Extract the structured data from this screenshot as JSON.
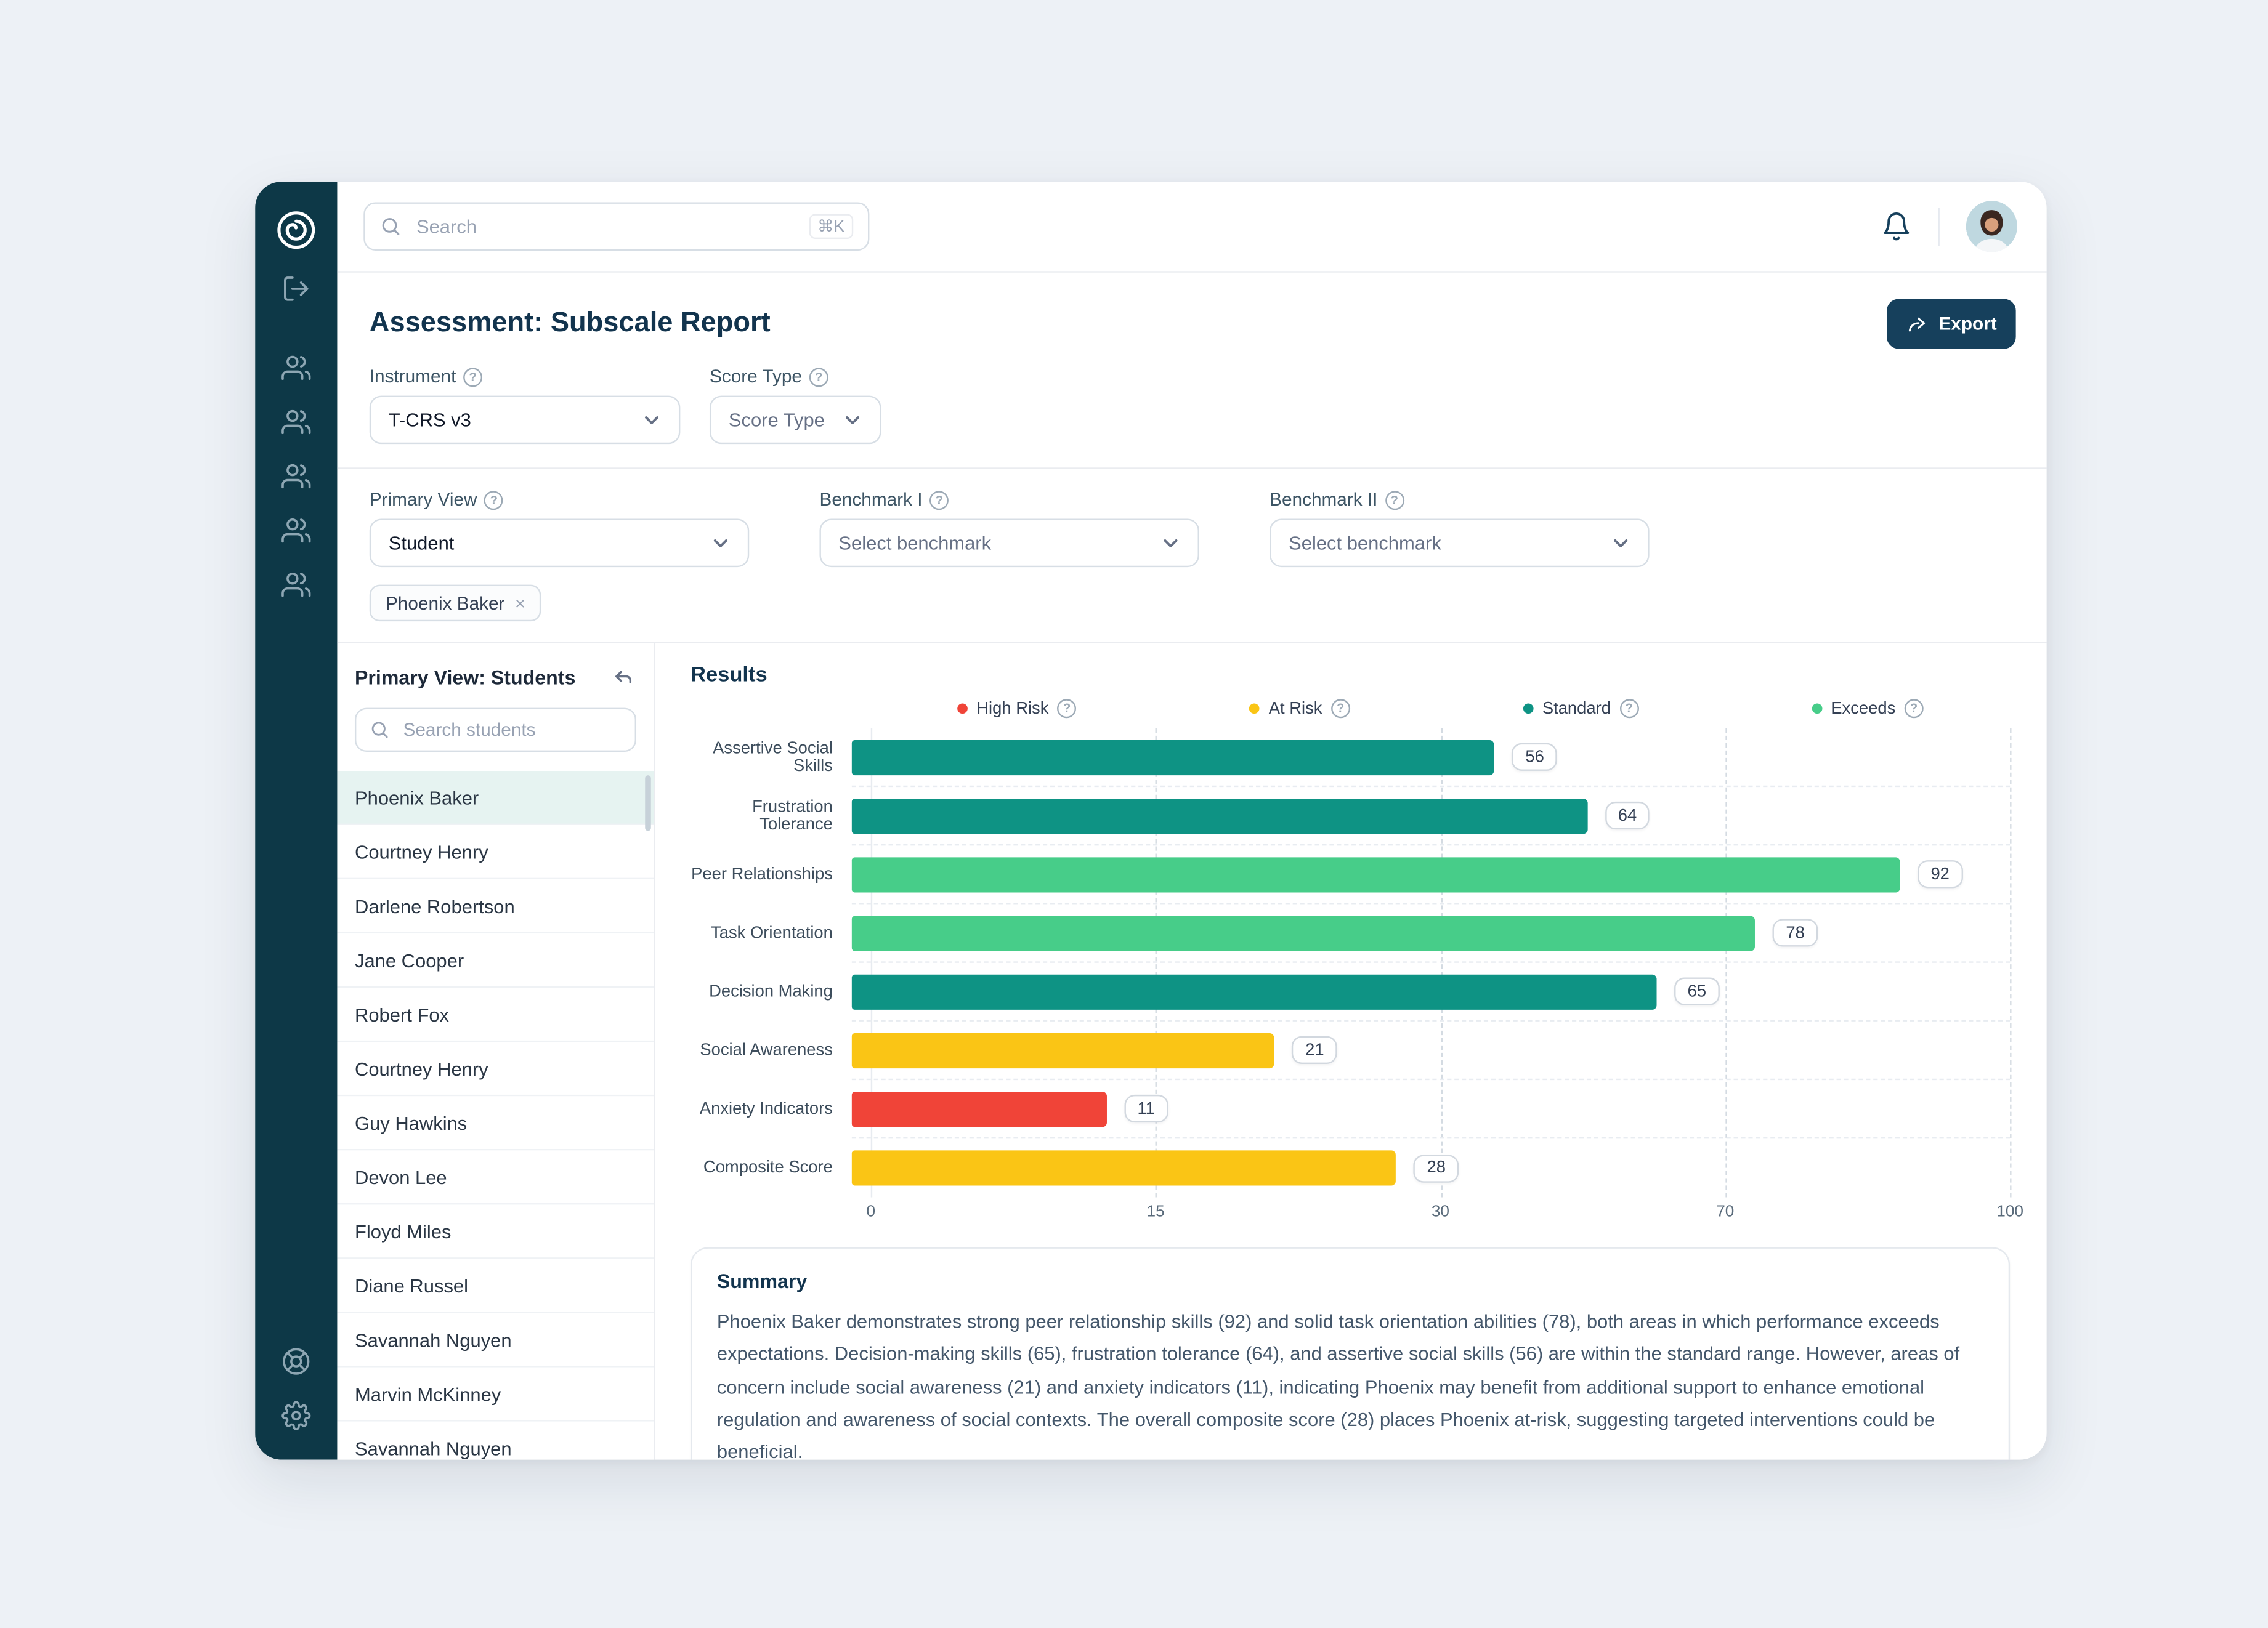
{
  "topbar": {
    "search_placeholder": "Search",
    "shortcut": "⌘K"
  },
  "header": {
    "title": "Assessment: Subscale Report",
    "export_label": "Export"
  },
  "filters": {
    "instrument_label": "Instrument",
    "instrument_value": "T-CRS v3",
    "score_type_label": "Score Type",
    "score_type_placeholder": "Score Type",
    "primary_view_label": "Primary View",
    "primary_view_value": "Student",
    "benchmark1_label": "Benchmark I",
    "benchmark1_placeholder": "Select benchmark",
    "benchmark2_label": "Benchmark II",
    "benchmark2_placeholder": "Select benchmark",
    "selected_chip": "Phoenix Baker"
  },
  "students_panel": {
    "title": "Primary View: Students",
    "search_placeholder": "Search students",
    "selected_index": 0,
    "students": [
      "Phoenix Baker",
      "Courtney Henry",
      "Darlene Robertson",
      "Jane Cooper",
      "Robert Fox",
      "Courtney Henry",
      "Guy Hawkins",
      "Devon Lee",
      "Floyd Miles",
      "Diane Russel",
      "Savannah Nguyen",
      "Marvin McKinney",
      "Savannah Nguyen"
    ]
  },
  "results": {
    "title": "Results"
  },
  "chart_data": {
    "type": "bar",
    "orientation": "horizontal",
    "title": "Results",
    "xlabel": "",
    "ylabel": "",
    "xlim": [
      0,
      100
    ],
    "x_ticks": [
      0,
      15,
      30,
      70,
      100
    ],
    "tick_positions_percent": [
      0,
      25,
      50,
      75,
      100
    ],
    "grid": "dashed-vertical",
    "legend_position": "top",
    "bands": [
      {
        "label": "High Risk",
        "color": "#F04438",
        "range": [
          0,
          15
        ]
      },
      {
        "label": "At Risk",
        "color": "#FAC515",
        "range": [
          15,
          30
        ]
      },
      {
        "label": "Standard",
        "color": "#0E9384",
        "range": [
          30,
          70
        ]
      },
      {
        "label": "Exceeds",
        "color": "#47CD89",
        "range": [
          70,
          100
        ]
      }
    ],
    "categories": [
      "Assertive Social Skills",
      "Frustration Tolerance",
      "Peer Relationships",
      "Task Orientation",
      "Decision Making",
      "Social Awareness",
      "Anxiety Indicators",
      "Composite Score"
    ],
    "values": [
      56,
      64,
      92,
      78,
      65,
      21,
      11,
      28
    ],
    "bar_colors": [
      "#0E9384",
      "#0E9384",
      "#47CD89",
      "#47CD89",
      "#0E9384",
      "#FAC515",
      "#F04438",
      "#FAC515"
    ],
    "bar_widths_percent": [
      55.5,
      63.5,
      90.5,
      78,
      69.5,
      36.5,
      22,
      47
    ]
  },
  "summary": {
    "title": "Summary",
    "text": "Phoenix Baker demonstrates strong peer relationship skills (92) and solid task orientation abilities (78), both areas in which performance exceeds expectations. Decision-making skills (65), frustration tolerance (64), and assertive social skills (56) are within the standard range. However, areas of concern include social awareness (21) and anxiety indicators (11), indicating Phoenix may benefit from additional support to enhance emotional regulation and awareness of social contexts. The overall composite score (28) places Phoenix at-risk, suggesting targeted interventions could be beneficial."
  },
  "icons": {
    "sidebar": [
      "logo",
      "sign-out",
      "users-group",
      "users-group",
      "users-group",
      "users-group",
      "users-group",
      "help",
      "settings"
    ],
    "topbar": [
      "search",
      "bell",
      "avatar"
    ],
    "colors": {
      "sidebar_bg": "#0D3847",
      "export_button": "#16405C",
      "accent_teal": "#0E9384"
    }
  }
}
